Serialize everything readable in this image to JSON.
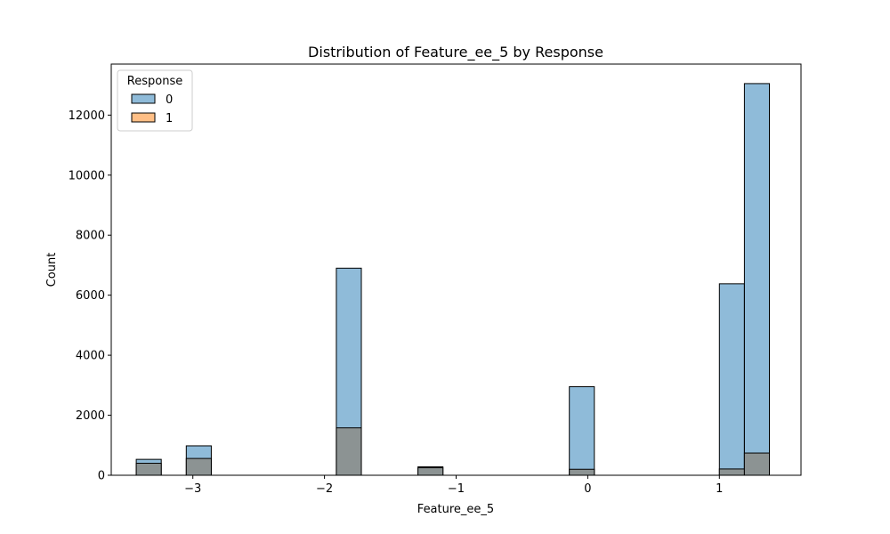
{
  "chart_data": {
    "type": "histogram",
    "title": "Distribution of Feature_ee_5 by Response",
    "xlabel": "Feature_ee_5",
    "ylabel": "Count",
    "xlim": [
      -3.62,
      1.62
    ],
    "ylim": [
      0,
      13700
    ],
    "x_ticks": [
      -3,
      -2,
      -1,
      0,
      1
    ],
    "x_tick_labels": [
      "−3",
      "−2",
      "−1",
      "0",
      "1"
    ],
    "y_ticks": [
      0,
      2000,
      4000,
      6000,
      8000,
      10000,
      12000
    ],
    "y_tick_labels": [
      "0",
      "2000",
      "4000",
      "6000",
      "8000",
      "10000",
      "12000"
    ],
    "grid": false,
    "legend": {
      "title": "Response",
      "position": "top-left"
    },
    "colors": {
      "series_0": "#1f77b4",
      "series_1": "#ff7f0e",
      "overlap": "#8c9393",
      "edge": "#000000"
    },
    "series": [
      {
        "name": "0",
        "bins": [
          {
            "x0": -3.43,
            "x1": -3.24,
            "count": 530
          },
          {
            "x0": -3.05,
            "x1": -2.86,
            "count": 980
          },
          {
            "x0": -1.91,
            "x1": -1.72,
            "count": 6900
          },
          {
            "x0": -1.29,
            "x1": -1.1,
            "count": 280
          },
          {
            "x0": -0.14,
            "x1": 0.05,
            "count": 2950
          },
          {
            "x0": 1.0,
            "x1": 1.19,
            "count": 6380
          },
          {
            "x0": 1.19,
            "x1": 1.38,
            "count": 13050
          }
        ]
      },
      {
        "name": "1",
        "bins": [
          {
            "x0": -3.43,
            "x1": -3.24,
            "count": 400
          },
          {
            "x0": -3.05,
            "x1": -2.86,
            "count": 560
          },
          {
            "x0": -1.91,
            "x1": -1.72,
            "count": 1580
          },
          {
            "x0": -1.29,
            "x1": -1.1,
            "count": 250
          },
          {
            "x0": -0.14,
            "x1": 0.05,
            "count": 200
          },
          {
            "x0": 1.0,
            "x1": 1.19,
            "count": 210
          },
          {
            "x0": 1.19,
            "x1": 1.38,
            "count": 740
          }
        ]
      }
    ]
  }
}
